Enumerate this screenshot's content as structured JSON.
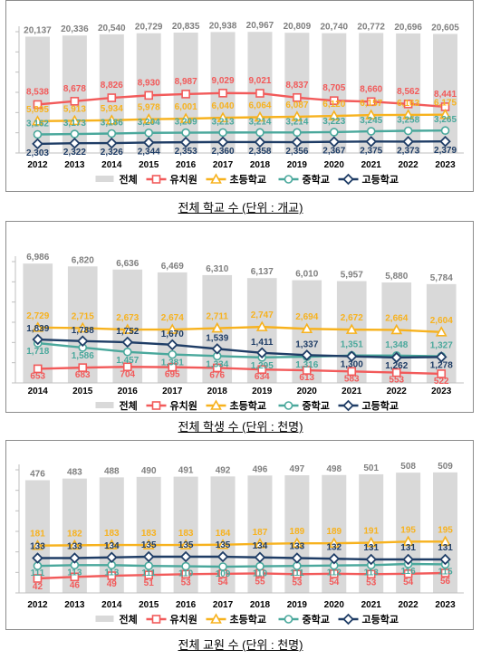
{
  "chart_data": [
    {
      "type": "bar",
      "title": "전체 학교 수 (단위 : 개교)",
      "categories": [
        "2012",
        "2013",
        "2014",
        "2015",
        "2016",
        "2017",
        "2018",
        "2019",
        "2020",
        "2021",
        "2022",
        "2023"
      ],
      "ylim": [
        0,
        21000
      ],
      "bar_series": {
        "name": "전체",
        "values": [
          20137,
          20336,
          20540,
          20729,
          20835,
          20938,
          20967,
          20809,
          20740,
          20772,
          20696,
          20605
        ]
      },
      "line_series": [
        {
          "name": "유치원",
          "values": [
            8538,
            8678,
            8826,
            8930,
            8987,
            9029,
            9021,
            8837,
            8705,
            8660,
            8562,
            8441
          ]
        },
        {
          "name": "초등학교",
          "values": [
            5895,
            5913,
            5934,
            5978,
            6001,
            6040,
            6064,
            6087,
            6120,
            6157,
            6163,
            6175
          ]
        },
        {
          "name": "중학교",
          "values": [
            3162,
            3173,
            3186,
            3204,
            3209,
            3213,
            3214,
            3214,
            3223,
            3245,
            3258,
            3265
          ]
        },
        {
          "name": "고등학교",
          "values": [
            2303,
            2322,
            2326,
            2344,
            2353,
            2360,
            2358,
            2356,
            2367,
            2375,
            2373,
            2379
          ]
        }
      ]
    },
    {
      "type": "bar",
      "title": "전체 학생 수 (단위 : 천명)",
      "categories": [
        "2014",
        "2015",
        "2016",
        "2017",
        "2018",
        "2019",
        "2020",
        "2021",
        "2022",
        "2023"
      ],
      "ylim": [
        0,
        7100
      ],
      "bar_series": {
        "name": "전체",
        "values": [
          6986,
          6820,
          6636,
          6469,
          6310,
          6137,
          6010,
          5957,
          5880,
          5784
        ]
      },
      "line_series": [
        {
          "name": "유치원",
          "values": [
            653,
            683,
            704,
            695,
            676,
            634,
            613,
            583,
            553,
            522
          ]
        },
        {
          "name": "초등학교",
          "values": [
            2729,
            2715,
            2673,
            2674,
            2711,
            2747,
            2694,
            2672,
            2664,
            2604
          ]
        },
        {
          "name": "중학교",
          "values": [
            1718,
            1586,
            1457,
            1381,
            1334,
            1295,
            1316,
            1351,
            1348,
            1327
          ]
        },
        {
          "name": "고등학교",
          "values": [
            1839,
            1788,
            1752,
            1670,
            1539,
            1411,
            1337,
            1300,
            1262,
            1278
          ]
        }
      ]
    },
    {
      "type": "bar",
      "title": "전체 교원 수 (단위 : 천명)",
      "categories": [
        "2012",
        "2013",
        "2014",
        "2015",
        "2016",
        "2017",
        "2018",
        "2019",
        "2020",
        "2021",
        "2022",
        "2023"
      ],
      "ylim": [
        0,
        520
      ],
      "bar_series": {
        "name": "전체",
        "values": [
          476,
          483,
          488,
          490,
          491,
          492,
          496,
          497,
          498,
          501,
          508,
          509
        ]
      },
      "line_series": [
        {
          "name": "유치원",
          "values": [
            42,
            46,
            49,
            51,
            53,
            54,
            55,
            53,
            54,
            53,
            54,
            56
          ]
        },
        {
          "name": "초등학교",
          "values": [
            181,
            182,
            183,
            183,
            183,
            184,
            187,
            189,
            189,
            191,
            195,
            195
          ]
        },
        {
          "name": "중학교",
          "values": [
            111,
            113,
            113,
            111,
            110,
            109,
            110,
            111,
            112,
            113,
            116,
            115
          ]
        },
        {
          "name": "고등학교",
          "values": [
            133,
            133,
            134,
            135,
            135,
            135,
            134,
            133,
            132,
            131,
            131,
            131
          ]
        }
      ]
    }
  ],
  "colors": {
    "bar": "#d9d9d9",
    "유치원": "#f25a5a",
    "초등학교": "#f7b21e",
    "중학교": "#4aa89c",
    "고등학교": "#1f3d66",
    "bar_label": "#7f7f7f"
  },
  "captions": [
    "전체 학교 수 (단위 : 개교)",
    "전체 학생 수 (단위 : 천명)",
    "전체 교원 수 (단위 : 천명)"
  ],
  "legend": [
    "전체",
    "유치원",
    "초등학교",
    "중학교",
    "고등학교"
  ]
}
